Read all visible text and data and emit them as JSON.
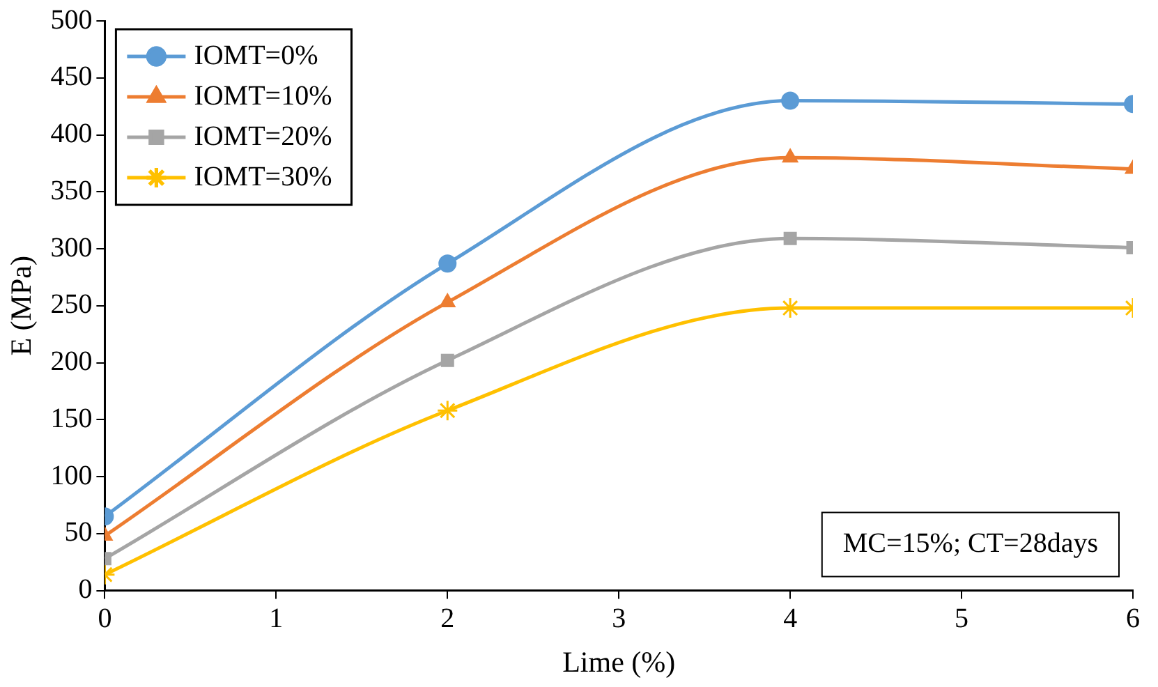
{
  "chart_data": {
    "type": "line",
    "xlabel": "Lime (%)",
    "ylabel": "E (MPa)",
    "x": [
      0,
      2,
      4,
      6
    ],
    "series": [
      {
        "name": "IOMT=0%",
        "color": "#5b9bd5",
        "marker": "circle",
        "values": [
          65,
          287,
          430,
          427
        ]
      },
      {
        "name": "IOMT=10%",
        "color": "#ed7d31",
        "marker": "triangle",
        "values": [
          48,
          253,
          380,
          370
        ]
      },
      {
        "name": "IOMT=20%",
        "color": "#a5a5a5",
        "marker": "square",
        "values": [
          28,
          202,
          309,
          301
        ]
      },
      {
        "name": "IOMT=30%",
        "color": "#ffc000",
        "marker": "cross",
        "values": [
          14,
          158,
          248,
          248
        ]
      }
    ],
    "xlim": [
      0,
      6
    ],
    "xticks": [
      0,
      1,
      2,
      3,
      4,
      5,
      6
    ],
    "ylim": [
      0,
      500
    ],
    "yticks": [
      0,
      50,
      100,
      150,
      200,
      250,
      300,
      350,
      400,
      450,
      500
    ],
    "grid": false,
    "legend": "top left",
    "annotations": [
      "MC=15%; CT=28days"
    ]
  }
}
